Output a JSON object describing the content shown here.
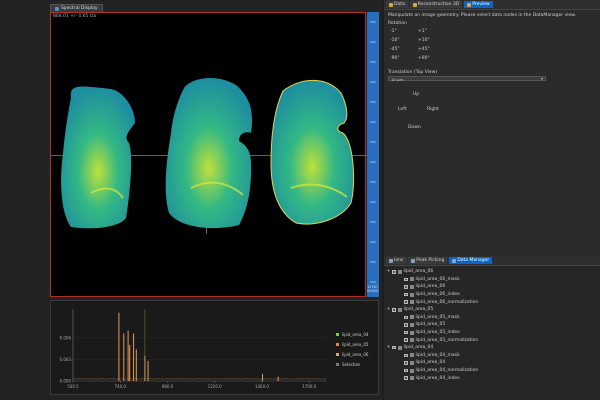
{
  "left": {
    "tab_title": "Spectral Display",
    "readout": "868.01 +/- 0.65 Da",
    "scale_readout": "12767 60000"
  },
  "chart_data": {
    "type": "line",
    "title": "",
    "xlabel": "",
    "ylabel": "",
    "x_ticks": [
      "500.5",
      "740.0",
      "980.0",
      "1220.0",
      "1460.0",
      "1700.0"
    ],
    "y_ticks": [
      "0.000",
      "0.003",
      "0.006"
    ],
    "xlim": [
      500,
      1800
    ],
    "ylim": [
      0,
      0.01
    ],
    "legend": [
      "lipid_area_04",
      "lipid_area_05",
      "lipid_area_06",
      "Selection"
    ],
    "legend_colors": [
      "#7ecb3d",
      "#ff7a3d",
      "#e0a060",
      "#7a7a7a"
    ],
    "peaks": [
      {
        "x": 735,
        "y": 0.0095
      },
      {
        "x": 760,
        "y": 0.0066
      },
      {
        "x": 782,
        "y": 0.007
      },
      {
        "x": 790,
        "y": 0.005
      },
      {
        "x": 810,
        "y": 0.0066
      },
      {
        "x": 824,
        "y": 0.0044
      },
      {
        "x": 868,
        "y": 0.0035
      },
      {
        "x": 884,
        "y": 0.0028
      },
      {
        "x": 1470,
        "y": 0.001
      },
      {
        "x": 1550,
        "y": 0.0006
      }
    ],
    "selection_x": 868
  },
  "right": {
    "tabs": [
      "Data",
      "Reconstruction 3D",
      "Preview"
    ],
    "active_tab": 2,
    "info_line1": "Manipulate an image geometry. Please select data nodes in the DataManager view.",
    "rotation_label": "Rotation",
    "rot_minus": [
      "-1°",
      "-10°",
      "-45°",
      "-90°"
    ],
    "rot_plus": [
      "+1°",
      "+10°",
      "+45°",
      "+90°"
    ],
    "translation_label": "Translation (Top View)",
    "translation_value": "10 μm",
    "dir_up": "Up",
    "dir_left": "Left",
    "dir_right": "Right",
    "dir_down": "Down",
    "bottom_tabs": [
      "Ions",
      "Peak Picking",
      "Data Manager"
    ],
    "bottom_active": 2,
    "tree": [
      {
        "label": "lipid_area_06",
        "level": 0
      },
      {
        "label": "lipid_area_06_mask",
        "level": 1
      },
      {
        "label": "lipid_area_06",
        "level": 1
      },
      {
        "label": "lipid_area_06_index",
        "level": 1
      },
      {
        "label": "lipid_area_06_normalization",
        "level": 1
      },
      {
        "label": "lipid_area_05",
        "level": 0
      },
      {
        "label": "lipid_area_05_mask",
        "level": 1
      },
      {
        "label": "lipid_area_05",
        "level": 1
      },
      {
        "label": "lipid_area_05_index",
        "level": 1
      },
      {
        "label": "lipid_area_05_normalization",
        "level": 1
      },
      {
        "label": "lipid_area_04",
        "level": 0
      },
      {
        "label": "lipid_area_04_mask",
        "level": 1
      },
      {
        "label": "lipid_area_04",
        "level": 1
      },
      {
        "label": "lipid_area_04_normalization",
        "level": 1
      },
      {
        "label": "lipid_area_04_index",
        "level": 1
      }
    ]
  }
}
